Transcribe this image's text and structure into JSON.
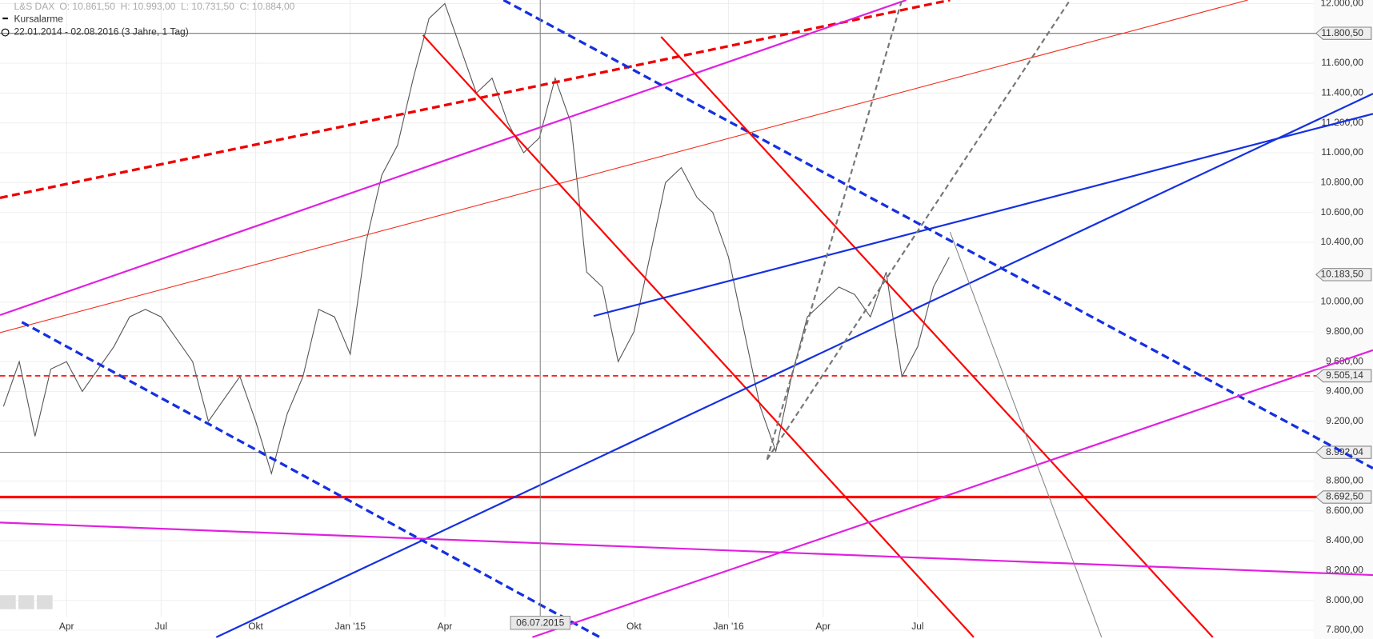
{
  "chart_data": {
    "type": "line",
    "instrument": "L&S DAX",
    "ohlc_text": "O: 10.861,50  H: 10.993,00  L: 10.731,50  C: 10.884,00",
    "alarm_label": "Kursalarme",
    "period": "22.01.2014 - 02.08.2016 (3 Jahre, 1 Tag)",
    "crosshair_label": "06.07.2015",
    "categories": [
      null,
      null,
      null,
      null,
      "Apr",
      null,
      null,
      null,
      null,
      null,
      "Jul",
      null,
      null,
      null,
      null,
      null,
      "Okt",
      null,
      null,
      null,
      null,
      null,
      "Jan '15",
      null,
      null,
      null,
      null,
      null,
      "Apr",
      null,
      null,
      null,
      null,
      null,
      null,
      null,
      null,
      null,
      null,
      null,
      "Okt",
      null,
      null,
      null,
      null,
      null,
      "Jan '16",
      null,
      null,
      null,
      null,
      null,
      "Apr",
      null,
      null,
      null,
      null,
      null,
      "Jul",
      null,
      null
    ],
    "series": [
      {
        "name": "L&S DAX",
        "color": "#555555",
        "values": [
          9300,
          9600,
          9100,
          9550,
          9600,
          9400,
          9550,
          9700,
          9900,
          9950,
          9900,
          9750,
          9600,
          9200,
          9350,
          9500,
          9200,
          8850,
          9250,
          9500,
          9950,
          9900,
          9650,
          10400,
          10850,
          11050,
          11500,
          11900,
          12000,
          11700,
          11400,
          11500,
          11200,
          11000,
          11100,
          11500,
          11200,
          10200,
          10100,
          9600,
          9800,
          10300,
          10800,
          10900,
          10700,
          10600,
          10300,
          9800,
          9300,
          9000,
          9500,
          9900,
          10000,
          10100,
          10050,
          9900,
          10200,
          9500,
          9700,
          10100,
          10300
        ]
      }
    ],
    "ylim": [
      7800,
      12000
    ],
    "yticks": [
      {
        "value": 7800,
        "label": "7.800,00"
      },
      {
        "value": 8000,
        "label": "8.000,00"
      },
      {
        "value": 8200,
        "label": "8.200,00"
      },
      {
        "value": 8400,
        "label": "8.400,00"
      },
      {
        "value": 8600,
        "label": "8.600,00"
      },
      {
        "value": 8800,
        "label": "8.800,00"
      },
      {
        "value": 9200,
        "label": "9.200,00"
      },
      {
        "value": 9400,
        "label": "9.400,00"
      },
      {
        "value": 9600,
        "label": "9.600,00"
      },
      {
        "value": 9800,
        "label": "9.800,00"
      },
      {
        "value": 10000,
        "label": "10.000,00"
      },
      {
        "value": 10400,
        "label": "10.400,00"
      },
      {
        "value": 10600,
        "label": "10.600,00"
      },
      {
        "value": 10800,
        "label": "10.800,00"
      },
      {
        "value": 11000,
        "label": "11.000,00"
      },
      {
        "value": 11200,
        "label": "11.200,00"
      },
      {
        "value": 11400,
        "label": "11.400,00"
      },
      {
        "value": 11600,
        "label": "11.600,00"
      },
      {
        "value": 12000,
        "label": "12.000,00"
      }
    ],
    "price_levels": [
      {
        "value": 11800.5,
        "label": "11.800,50",
        "color": "#777777",
        "style": "solid"
      },
      {
        "value": 10183.5,
        "label": "10.183,50",
        "color": "none",
        "style": "none"
      },
      {
        "value": 9505.14,
        "label": "9.505,14",
        "color": "#ff0000",
        "style": "dashed"
      },
      {
        "value": 8992.04,
        "label": "8.992,04",
        "color": "#777777",
        "style": "solid"
      },
      {
        "value": 8692.5,
        "label": "8.692,50",
        "color": "#ff0000",
        "style": "thick"
      }
    ],
    "grid": true
  }
}
